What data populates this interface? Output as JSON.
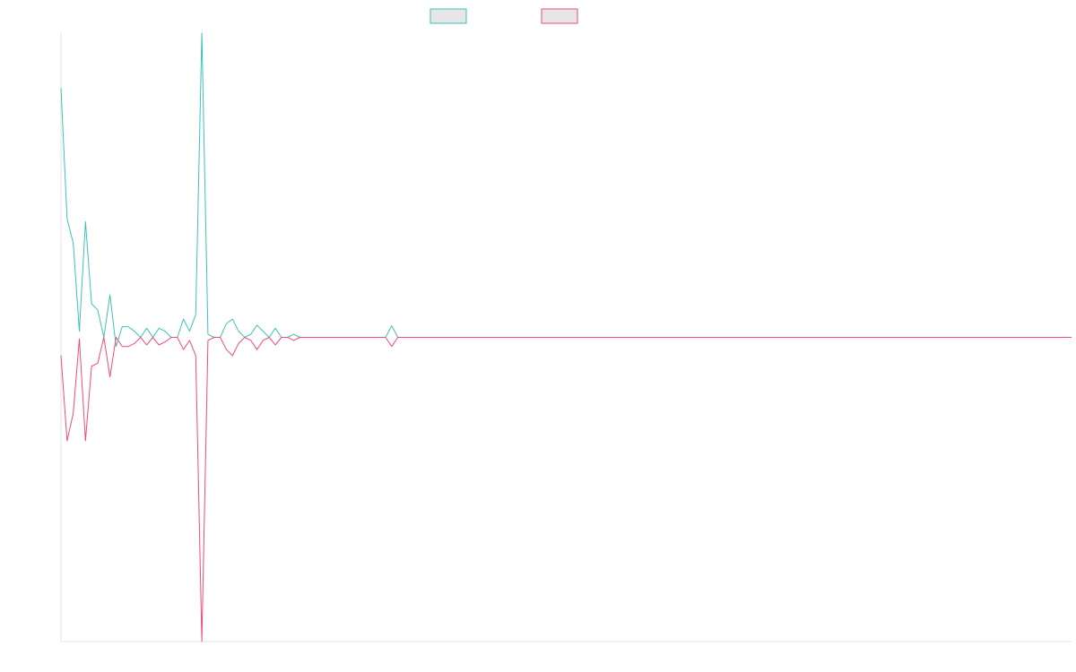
{
  "colors": {
    "series_1": "#3cc3b8",
    "series_2": "#f04b78",
    "legend_fill": "#e6e6e6",
    "axis": "#e3e3e3"
  },
  "chart_data": {
    "type": "line",
    "title": "",
    "xlabel": "",
    "ylabel": "",
    "grid": false,
    "legend": "top-center",
    "x": [
      0,
      1,
      2,
      3,
      4,
      5,
      6,
      7,
      8,
      9,
      10,
      11,
      12,
      13,
      14,
      15,
      16,
      17,
      18,
      19,
      20,
      21,
      22,
      23,
      24,
      25,
      26,
      27,
      28,
      29,
      30,
      31,
      32,
      33,
      34,
      35,
      36,
      37,
      38,
      39,
      40,
      41,
      42,
      43,
      44,
      45,
      46,
      47,
      48,
      49,
      50,
      51,
      52,
      53,
      54,
      55,
      56,
      57,
      58,
      59,
      60,
      61,
      62,
      63,
      64,
      65,
      66,
      67,
      68,
      69,
      70,
      71,
      72,
      73,
      74,
      75,
      76,
      77,
      78,
      79,
      80,
      81,
      82,
      83,
      84,
      85,
      86,
      87,
      88,
      89,
      90,
      91,
      92,
      93,
      94,
      95,
      96,
      97,
      98,
      99,
      100,
      101,
      102,
      103,
      104,
      105,
      106,
      107,
      108,
      109,
      110,
      111,
      112,
      113,
      114,
      115,
      116,
      117,
      118,
      119,
      120,
      121,
      122,
      123,
      124,
      125,
      126,
      127,
      128,
      129,
      130,
      131,
      132,
      133,
      134,
      135,
      136,
      137,
      138,
      139,
      140,
      141,
      142,
      143,
      144,
      145,
      146,
      147,
      148,
      149,
      150,
      151,
      152,
      153,
      154,
      155,
      156,
      157,
      158,
      159,
      160,
      161,
      162,
      163,
      164,
      165
    ],
    "xlim": [
      0,
      165
    ],
    "ylim": [
      -1.0,
      1.0
    ],
    "series": [
      {
        "values": [
          0.82,
          0.39,
          0.31,
          0.02,
          0.38,
          0.11,
          0.09,
          0.0,
          0.14,
          -0.03,
          0.035,
          0.035,
          0.02,
          0.0,
          0.03,
          0.0,
          0.03,
          0.02,
          0.0,
          0.0,
          0.06,
          0.02,
          0.075,
          1.0,
          0.01,
          0.0,
          0.0,
          0.045,
          0.06,
          0.02,
          0.0,
          0.01,
          0.04,
          0.02,
          0.0,
          0.03,
          0.0,
          0.0,
          0.01,
          0.0,
          0.0,
          0.0,
          0.0,
          0.0,
          0.0,
          0.0,
          0.0,
          0.0,
          0.0,
          0.0,
          0.0,
          0.0,
          0.0,
          0.0,
          0.038,
          0.0,
          0.0,
          0.0,
          0.0,
          0.0,
          0.0,
          0.0,
          0.0,
          0.0,
          0.0,
          0.0,
          0.0,
          0.0,
          0.0,
          0.0,
          0.0,
          0.0,
          0.0,
          0.0,
          0.0,
          0.0,
          0.0,
          0.0,
          0.0,
          0.0,
          0.0,
          0.0,
          0.0,
          0.0,
          0.0,
          0.0,
          0.0,
          0.0,
          0.0,
          0.0,
          0.0,
          0.0,
          0.0,
          0.0,
          0.0,
          0.0,
          0.0,
          0.0,
          0.0,
          0.0,
          0.0,
          0.0,
          0.0,
          0.0,
          0.0,
          0.0,
          0.0,
          0.0,
          0.0,
          0.0,
          0.0,
          0.0,
          0.0,
          0.0,
          0.0,
          0.0,
          0.0,
          0.0,
          0.0,
          0.0,
          0.0,
          0.0,
          0.0,
          0.0,
          0.0,
          0.0,
          0.0,
          0.0,
          0.0,
          0.0,
          0.0,
          0.0,
          0.0,
          0.0,
          0.0,
          0.0,
          0.0,
          0.0,
          0.0,
          0.0,
          0.0,
          0.0,
          0.0,
          0.0,
          0.0,
          0.0,
          0.0,
          0.0,
          0.0,
          0.0,
          0.0,
          0.0,
          0.0,
          0.0,
          0.0,
          0.0,
          0.0,
          0.0,
          0.0,
          0.0,
          0.0,
          0.0,
          0.0,
          0.0,
          0.0,
          0.0
        ]
      },
      {
        "values": [
          -0.06,
          -0.34,
          -0.25,
          -0.005,
          -0.34,
          -0.095,
          -0.085,
          0.0,
          -0.13,
          0.0,
          -0.03,
          -0.03,
          -0.02,
          0.0,
          -0.025,
          0.0,
          -0.025,
          -0.015,
          0.0,
          0.0,
          -0.04,
          -0.01,
          -0.06,
          -1.0,
          -0.01,
          0.0,
          0.0,
          -0.04,
          -0.06,
          -0.02,
          0.0,
          -0.01,
          -0.04,
          -0.01,
          0.0,
          -0.025,
          0.0,
          0.0,
          -0.01,
          0.0,
          0.0,
          0.0,
          0.0,
          0.0,
          0.0,
          0.0,
          0.0,
          0.0,
          0.0,
          0.0,
          0.0,
          0.0,
          0.0,
          0.0,
          -0.03,
          0.0,
          0.0,
          0.0,
          0.0,
          0.0,
          0.0,
          0.0,
          0.0,
          0.0,
          0.0,
          0.0,
          0.0,
          0.0,
          0.0,
          0.0,
          0.0,
          0.0,
          0.0,
          0.0,
          0.0,
          0.0,
          0.0,
          0.0,
          0.0,
          0.0,
          0.0,
          0.0,
          0.0,
          0.0,
          0.0,
          0.0,
          0.0,
          0.0,
          0.0,
          0.0,
          0.0,
          0.0,
          0.0,
          0.0,
          0.0,
          0.0,
          0.0,
          0.0,
          0.0,
          0.0,
          0.0,
          0.0,
          0.0,
          0.0,
          0.0,
          0.0,
          0.0,
          0.0,
          0.0,
          0.0,
          0.0,
          0.0,
          0.0,
          0.0,
          0.0,
          0.0,
          0.0,
          0.0,
          0.0,
          0.0,
          0.0,
          0.0,
          0.0,
          0.0,
          0.0,
          0.0,
          0.0,
          0.0,
          0.0,
          0.0,
          0.0,
          0.0,
          0.0,
          0.0,
          0.0,
          0.0,
          0.0,
          0.0,
          0.0,
          0.0,
          0.0,
          0.0,
          0.0,
          0.0,
          0.0,
          0.0,
          0.0,
          0.0,
          0.0,
          0.0,
          0.0,
          0.0,
          0.0,
          0.0,
          0.0,
          0.0,
          0.0,
          0.0,
          0.0,
          0.0,
          0.0,
          0.0,
          0.0,
          0.0,
          0.0,
          0.0
        ]
      }
    ]
  }
}
